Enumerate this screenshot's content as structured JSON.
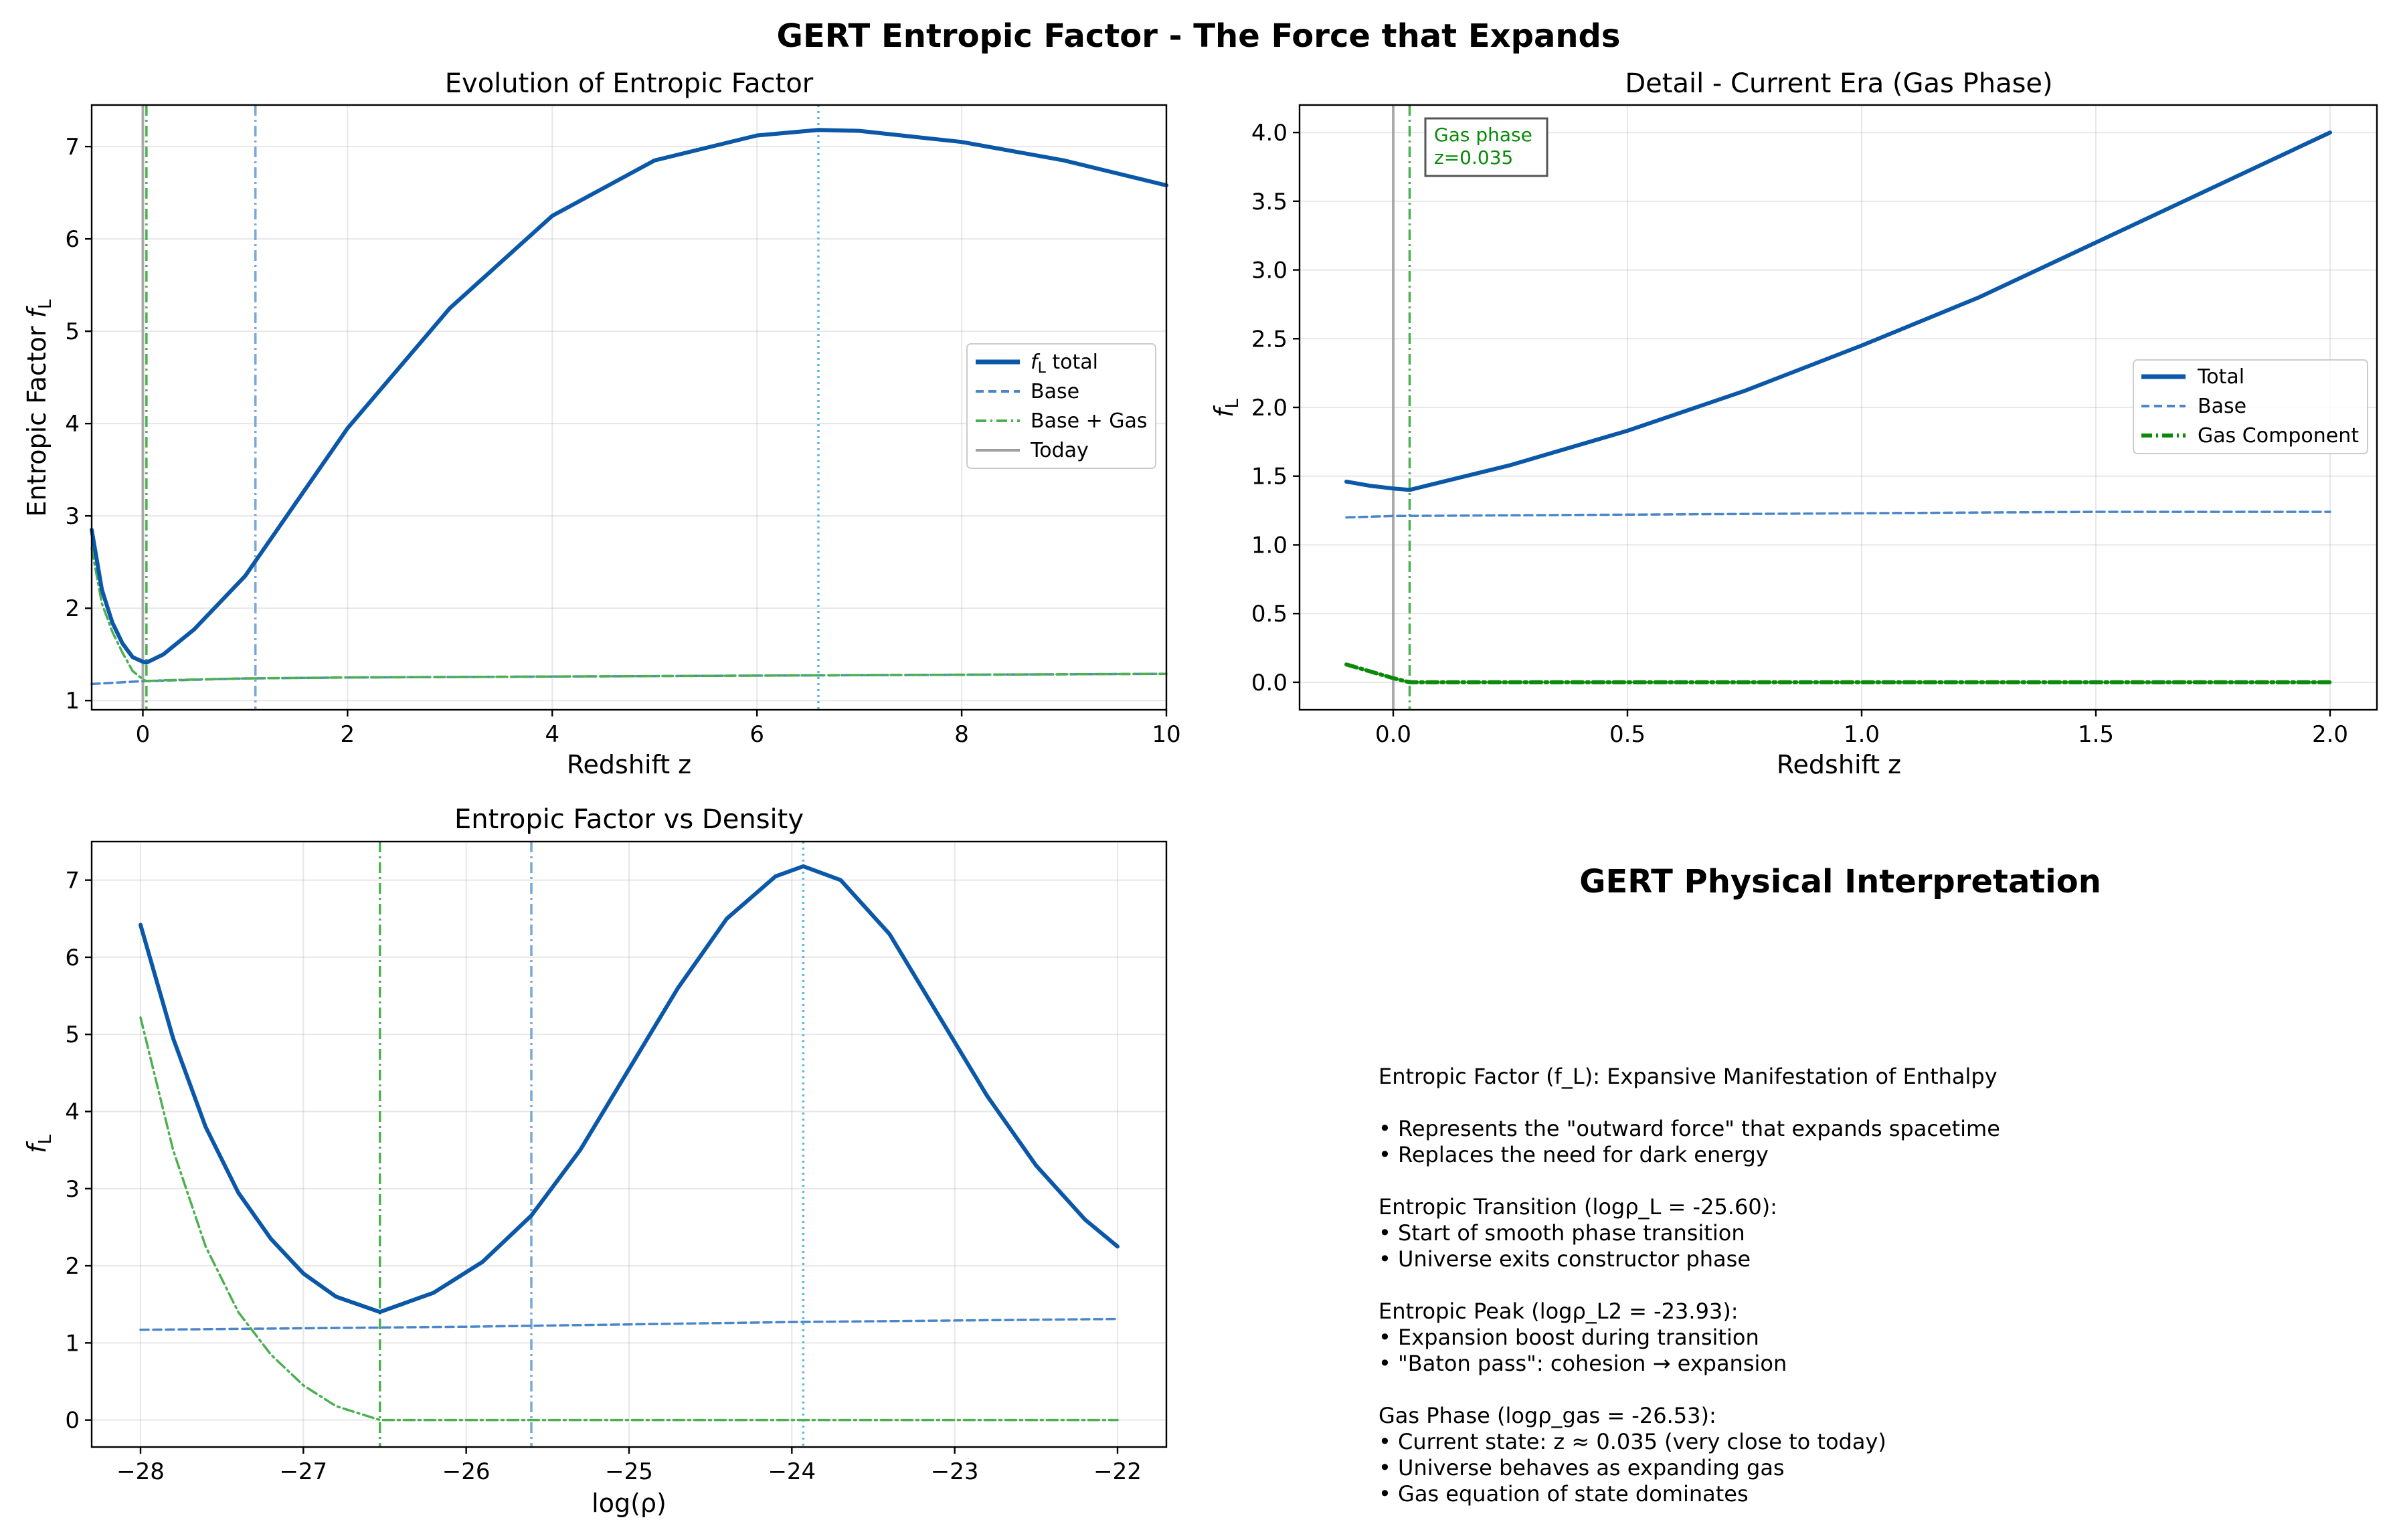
{
  "figure": {
    "suptitle": "GERT Entropic Factor - The Force that Expands",
    "colors": {
      "total": "#0b57a8",
      "base": "#4a86c8",
      "gas_light": "#4caf50",
      "gas_dark": "#0a8a0a",
      "today": "#9e9e9e",
      "transition": "#7aa7d6",
      "peak": "#5bb8e0"
    }
  },
  "chart_data": [
    {
      "type": "line",
      "title": "Evolution of Entropic Factor",
      "xlabel": "Redshift z",
      "ylabel": "Entropic Factor f_L",
      "xlim": [
        -0.5,
        10
      ],
      "ylim": [
        0.9,
        7.45
      ],
      "xticks": [
        "0",
        "2",
        "4",
        "6",
        "8",
        "10"
      ],
      "yticks": [
        "1",
        "2",
        "3",
        "4",
        "5",
        "6",
        "7"
      ],
      "grid": true,
      "legend_position": "center-right",
      "legend": [
        "f_L total",
        "Base",
        "Base + Gas",
        "Today"
      ],
      "vlines": [
        {
          "x": 0,
          "style": "solid",
          "label": "Today"
        },
        {
          "x": 0.035,
          "style": "dashdot",
          "label": "Gas phase"
        },
        {
          "x": 1.1,
          "style": "dashdot",
          "label": "Entropic transition"
        },
        {
          "x": 6.6,
          "style": "dotted",
          "label": "Entropic peak"
        }
      ],
      "series": [
        {
          "name": "f_L total",
          "x": [
            -0.5,
            -0.4,
            -0.3,
            -0.2,
            -0.1,
            0,
            0.035,
            0.2,
            0.5,
            1,
            1.5,
            2,
            3,
            4,
            5,
            6,
            6.6,
            7,
            8,
            9,
            10
          ],
          "y": [
            2.85,
            2.2,
            1.85,
            1.62,
            1.47,
            1.42,
            1.41,
            1.5,
            1.77,
            2.35,
            3.15,
            3.95,
            5.25,
            6.25,
            6.85,
            7.12,
            7.18,
            7.17,
            7.05,
            6.85,
            6.58
          ]
        },
        {
          "name": "Base",
          "x": [
            -0.5,
            0,
            1,
            2,
            4,
            6,
            8,
            10
          ],
          "y": [
            1.18,
            1.21,
            1.24,
            1.25,
            1.26,
            1.27,
            1.28,
            1.29
          ]
        },
        {
          "name": "Base + Gas",
          "x": [
            -0.5,
            -0.4,
            -0.3,
            -0.2,
            -0.1,
            0,
            0.035,
            0.2,
            1,
            2,
            4,
            6,
            8,
            10
          ],
          "y": [
            2.65,
            2.05,
            1.75,
            1.52,
            1.32,
            1.23,
            1.21,
            1.22,
            1.24,
            1.25,
            1.26,
            1.27,
            1.28,
            1.29
          ]
        }
      ]
    },
    {
      "type": "line",
      "title": "Detail - Current Era (Gas Phase)",
      "xlabel": "Redshift z",
      "ylabel": "f_L",
      "xlim": [
        -0.2,
        2.1
      ],
      "ylim": [
        -0.2,
        4.2
      ],
      "xticks": [
        "0.0",
        "0.5",
        "1.0",
        "1.5",
        "2.0"
      ],
      "yticks": [
        "0.0",
        "0.5",
        "1.0",
        "1.5",
        "2.0",
        "2.5",
        "3.0",
        "3.5",
        "4.0"
      ],
      "grid": true,
      "legend_position": "center-right",
      "legend": [
        "Total",
        "Base",
        "Gas Component"
      ],
      "annotation": [
        "Gas phase",
        "z=0.035"
      ],
      "vlines": [
        {
          "x": 0,
          "style": "solid",
          "label": "Today"
        },
        {
          "x": 0.035,
          "style": "dashdot",
          "label": "Gas phase"
        }
      ],
      "series": [
        {
          "name": "Total",
          "x": [
            -0.1,
            -0.05,
            0,
            0.035,
            0.25,
            0.5,
            0.75,
            1,
            1.25,
            1.5,
            1.75,
            2
          ],
          "y": [
            1.46,
            1.43,
            1.41,
            1.4,
            1.58,
            1.83,
            2.12,
            2.45,
            2.8,
            3.2,
            3.6,
            4.0
          ]
        },
        {
          "name": "Base",
          "x": [
            -0.1,
            0,
            0.5,
            1,
            1.5,
            2
          ],
          "y": [
            1.2,
            1.21,
            1.22,
            1.23,
            1.24,
            1.24
          ]
        },
        {
          "name": "Gas Component",
          "x": [
            -0.1,
            -0.05,
            0,
            0.035,
            0.5,
            1,
            1.5,
            2
          ],
          "y": [
            0.13,
            0.08,
            0.03,
            0.0,
            0.0,
            0.0,
            0.0,
            0.0
          ]
        }
      ]
    },
    {
      "type": "line",
      "title": "Entropic Factor vs Density",
      "xlabel": "log(ρ)",
      "ylabel": "f_L",
      "xlim": [
        -28.3,
        -21.7
      ],
      "ylim": [
        -0.35,
        7.5
      ],
      "xticks": [
        "−28",
        "−27",
        "−26",
        "−25",
        "−24",
        "−23",
        "−22"
      ],
      "yticks": [
        "0",
        "1",
        "2",
        "3",
        "4",
        "5",
        "6",
        "7"
      ],
      "grid": true,
      "vlines": [
        {
          "x": -26.53,
          "style": "dashdot",
          "label": "Gas phase"
        },
        {
          "x": -25.6,
          "style": "dashdot",
          "label": "Entropic transition"
        },
        {
          "x": -23.93,
          "style": "dotted",
          "label": "Entropic peak"
        }
      ],
      "series": [
        {
          "name": "Total",
          "x": [
            -28,
            -27.8,
            -27.6,
            -27.4,
            -27.2,
            -27,
            -26.8,
            -26.53,
            -26.2,
            -25.9,
            -25.6,
            -25.3,
            -25,
            -24.7,
            -24.4,
            -24.1,
            -23.93,
            -23.7,
            -23.4,
            -23.1,
            -22.8,
            -22.5,
            -22.2,
            -22
          ],
          "y": [
            6.42,
            4.95,
            3.8,
            2.95,
            2.35,
            1.9,
            1.6,
            1.4,
            1.65,
            2.05,
            2.65,
            3.5,
            4.55,
            5.6,
            6.5,
            7.05,
            7.18,
            7.0,
            6.3,
            5.25,
            4.2,
            3.3,
            2.6,
            2.25
          ]
        },
        {
          "name": "Base",
          "x": [
            -28,
            -27,
            -26,
            -25,
            -24,
            -23,
            -22
          ],
          "y": [
            1.17,
            1.19,
            1.21,
            1.24,
            1.27,
            1.29,
            1.31
          ]
        },
        {
          "name": "Gas Component",
          "x": [
            -28,
            -27.8,
            -27.6,
            -27.4,
            -27.2,
            -27,
            -26.8,
            -26.53,
            -26,
            -25,
            -24,
            -23,
            -22
          ],
          "y": [
            5.22,
            3.5,
            2.25,
            1.4,
            0.85,
            0.45,
            0.18,
            0.0,
            0.0,
            0.0,
            0.0,
            0.0,
            0.0
          ]
        }
      ]
    }
  ],
  "interpretation": {
    "title": "GERT Physical Interpretation",
    "text": "Entropic Factor (f_L): Expansive Manifestation of Enthalpy\n\n• Represents the \"outward force\" that expands spacetime\n• Replaces the need for dark energy\n\nEntropic Transition (logρ_L = -25.60):\n• Start of smooth phase transition\n• Universe exits constructor phase\n\nEntropic Peak (logρ_L2 = -23.93):\n• Expansion boost during transition\n• \"Baton pass\": cohesion → expansion\n\nGas Phase (logρ_gas = -26.53):\n• Current state: z ≈ 0.035 (very close to today)\n• Universe behaves as expanding gas\n• Gas equation of state dominates"
  }
}
